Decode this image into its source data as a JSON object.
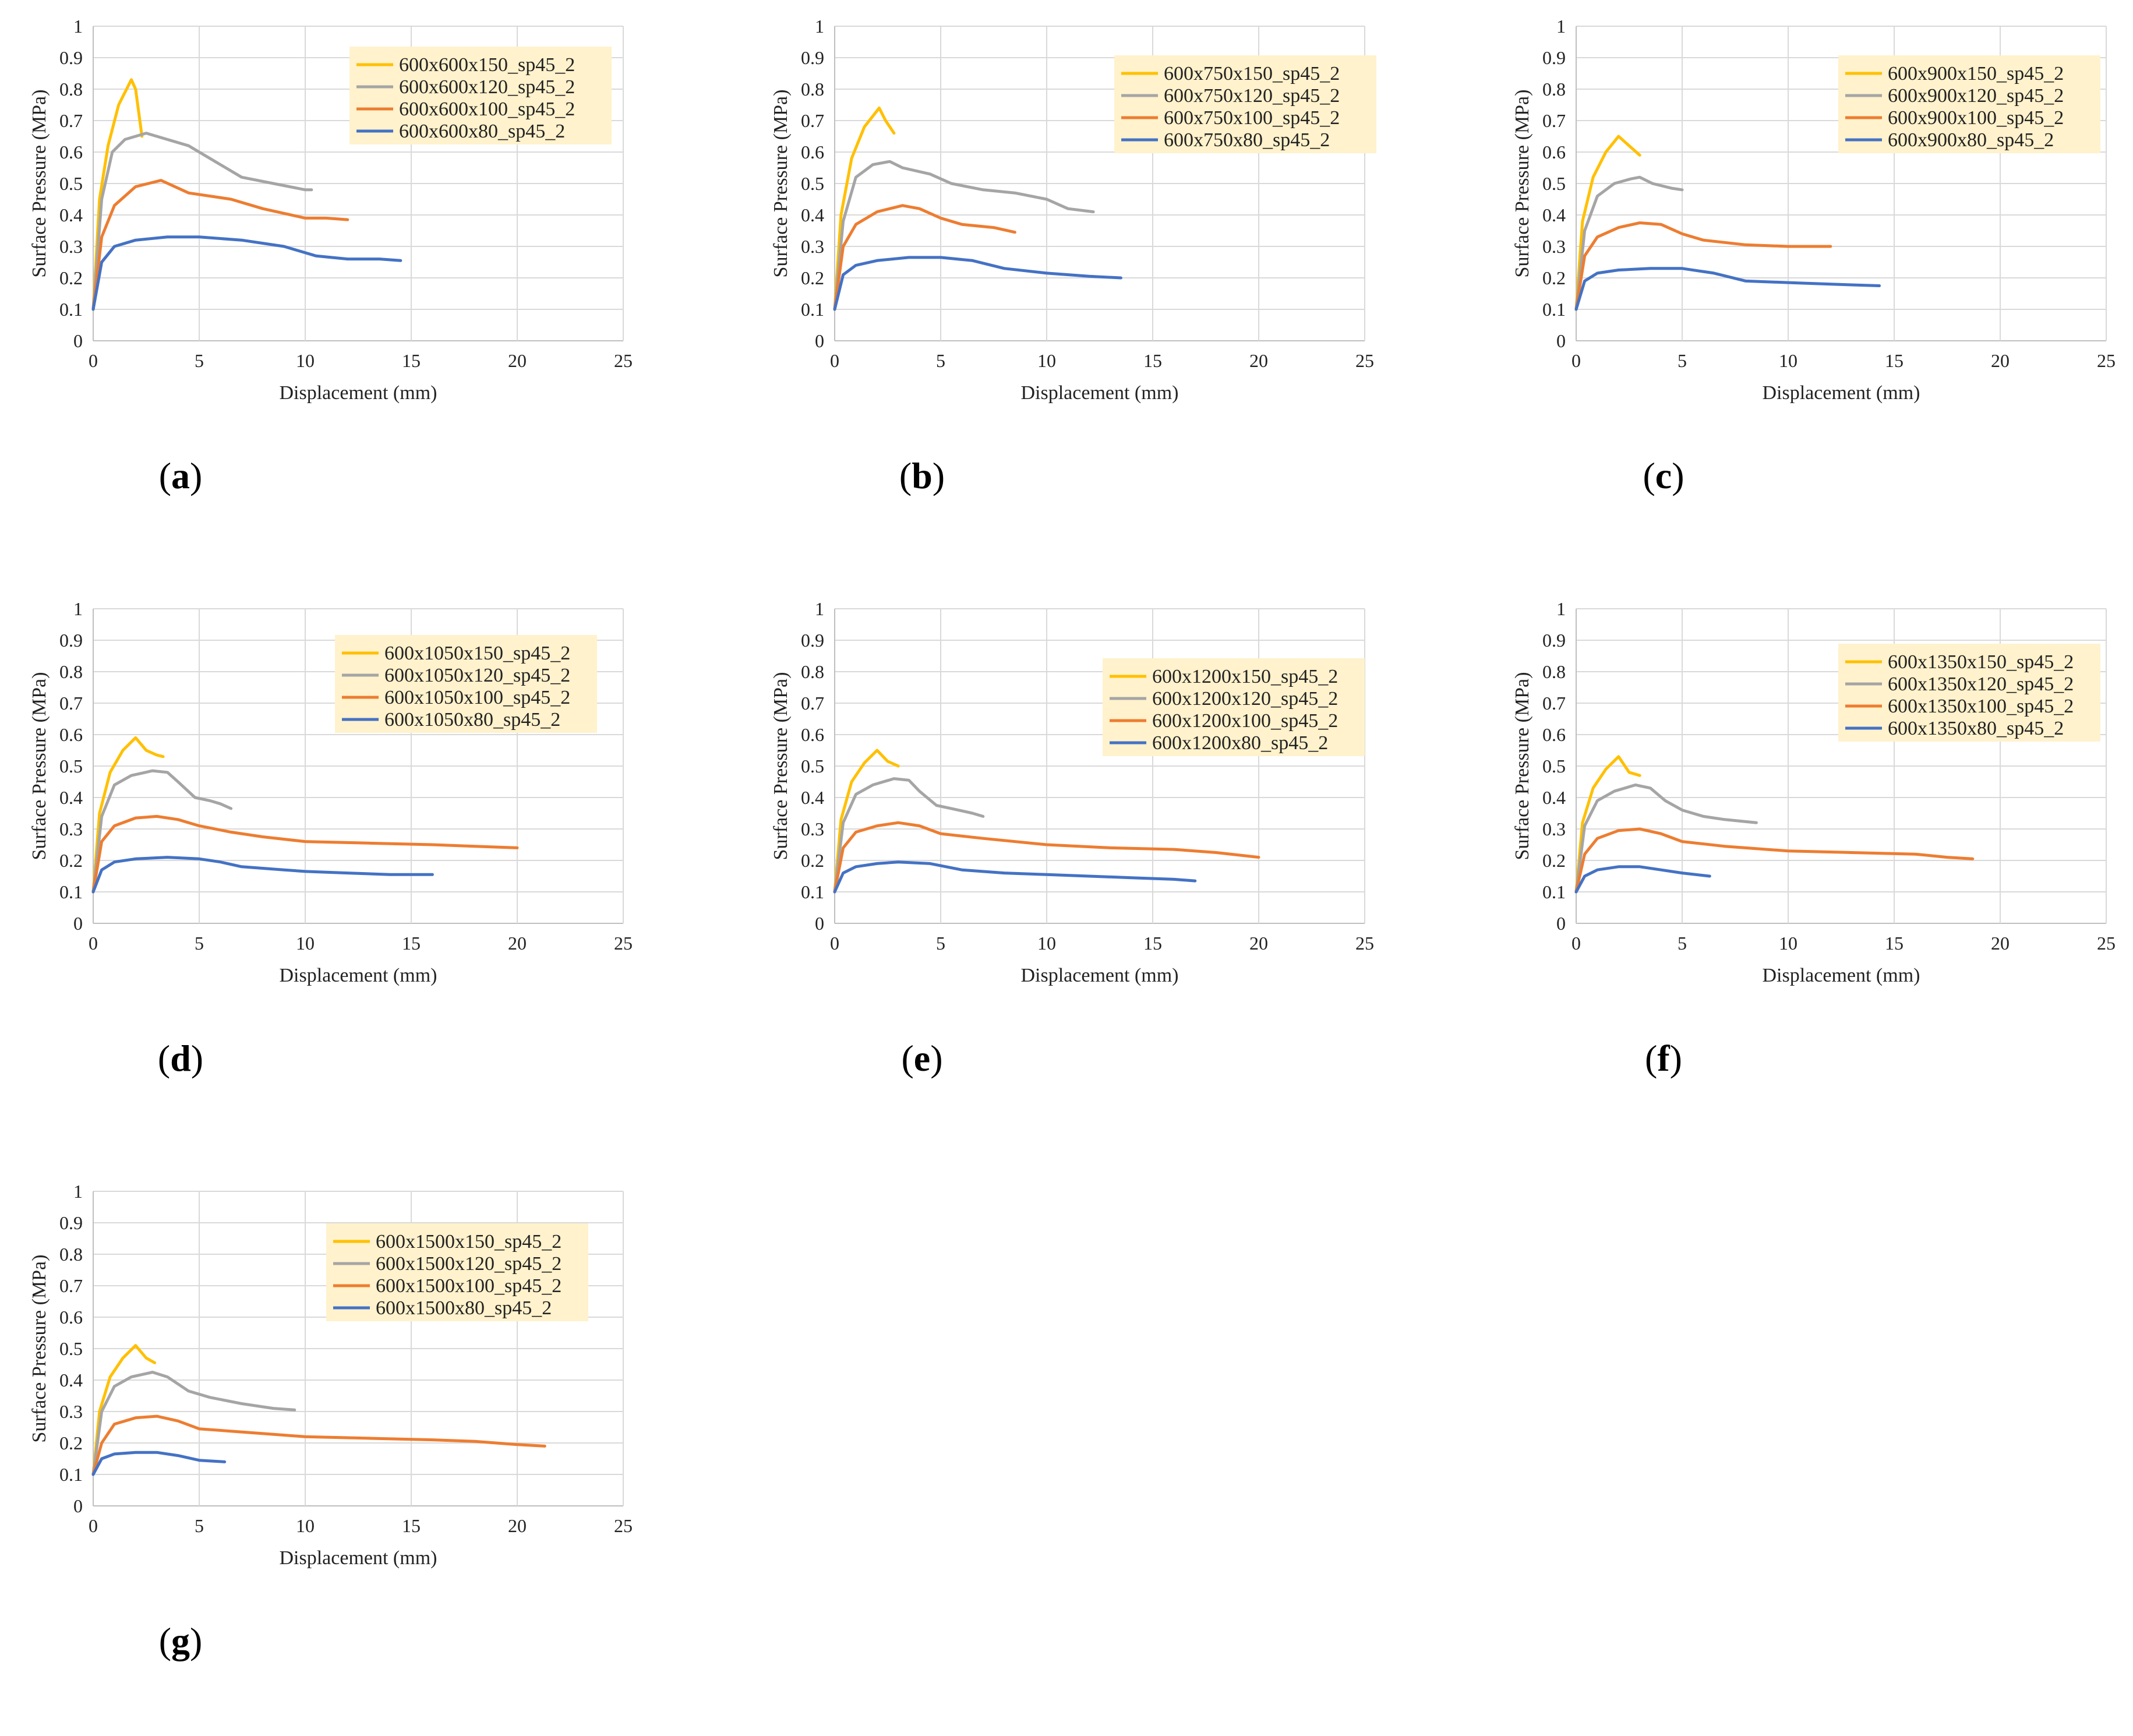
{
  "colors": {
    "series": [
      "#FFC000",
      "#A5A5A5",
      "#ED7D31",
      "#4472C4"
    ],
    "legend_bg": "#FFF2CC",
    "grid": "#D9D9D9"
  },
  "chart_data": [
    {
      "type": "line",
      "panel_label": "a",
      "xlabel": "Displacement (mm)",
      "ylabel": "Surface Pressure (MPa)",
      "xlim": [
        0,
        25
      ],
      "ylim": [
        0,
        1
      ],
      "xticks": [
        "0",
        "5",
        "10",
        "15",
        "20",
        "25"
      ],
      "yticks": [
        "0",
        "0.1",
        "0.2",
        "0.3",
        "0.4",
        "0.5",
        "0.6",
        "0.7",
        "0.8",
        "0.9",
        "1"
      ],
      "series": [
        {
          "name": "600x600x150_sp45_2",
          "x": [
            0,
            0.3,
            0.7,
            1.2,
            1.8,
            2.0,
            2.3
          ],
          "y": [
            0.1,
            0.45,
            0.62,
            0.75,
            0.83,
            0.8,
            0.65
          ]
        },
        {
          "name": "600x600x120_sp45_2",
          "x": [
            0,
            0.4,
            0.9,
            1.5,
            2.5,
            3.0,
            4.5,
            5.5,
            7,
            8.5,
            10,
            10.3
          ],
          "y": [
            0.1,
            0.45,
            0.6,
            0.64,
            0.66,
            0.65,
            0.62,
            0.58,
            0.52,
            0.5,
            0.48,
            0.48
          ]
        },
        {
          "name": "600x600x100_sp45_2",
          "x": [
            0,
            0.4,
            1.0,
            2.0,
            3.2,
            4.5,
            6.5,
            8,
            10,
            11,
            12
          ],
          "y": [
            0.1,
            0.33,
            0.43,
            0.49,
            0.51,
            0.47,
            0.45,
            0.42,
            0.39,
            0.39,
            0.385
          ]
        },
        {
          "name": "600x600x80_sp45_2",
          "x": [
            0,
            0.4,
            1.0,
            2.0,
            3.5,
            5,
            7,
            9,
            10.5,
            12,
            13.5,
            14.5
          ],
          "y": [
            0.1,
            0.25,
            0.3,
            0.32,
            0.33,
            0.33,
            0.32,
            0.3,
            0.27,
            0.26,
            0.26,
            0.255
          ]
        }
      ]
    },
    {
      "type": "line",
      "panel_label": "b",
      "xlabel": "Displacement (mm)",
      "ylabel": "Surface Pressure (MPa)",
      "xlim": [
        0,
        25
      ],
      "ylim": [
        0,
        1
      ],
      "xticks": [
        "0",
        "5",
        "10",
        "15",
        "20",
        "25"
      ],
      "yticks": [
        "0",
        "0.1",
        "0.2",
        "0.3",
        "0.4",
        "0.5",
        "0.6",
        "0.7",
        "0.8",
        "0.9",
        "1"
      ],
      "series": [
        {
          "name": "600x750x150_sp45_2",
          "x": [
            0,
            0.3,
            0.8,
            1.4,
            2.1,
            2.4,
            2.8
          ],
          "y": [
            0.1,
            0.4,
            0.58,
            0.68,
            0.74,
            0.7,
            0.66
          ]
        },
        {
          "name": "600x750x120_sp45_2",
          "x": [
            0,
            0.4,
            1.0,
            1.8,
            2.6,
            3.2,
            4.5,
            5.5,
            7,
            8.5,
            10,
            11,
            12.2
          ],
          "y": [
            0.1,
            0.38,
            0.52,
            0.56,
            0.57,
            0.55,
            0.53,
            0.5,
            0.48,
            0.47,
            0.45,
            0.42,
            0.41
          ]
        },
        {
          "name": "600x750x100_sp45_2",
          "x": [
            0,
            0.4,
            1.0,
            2.0,
            3.2,
            4.0,
            5.0,
            6.0,
            7.5,
            8.5
          ],
          "y": [
            0.1,
            0.3,
            0.37,
            0.41,
            0.43,
            0.42,
            0.39,
            0.37,
            0.36,
            0.345
          ]
        },
        {
          "name": "600x750x80_sp45_2",
          "x": [
            0,
            0.4,
            1.0,
            2.0,
            3.5,
            5,
            6.5,
            8,
            10,
            12,
            13.5
          ],
          "y": [
            0.1,
            0.21,
            0.24,
            0.255,
            0.265,
            0.265,
            0.255,
            0.23,
            0.215,
            0.205,
            0.2
          ]
        }
      ]
    },
    {
      "type": "line",
      "panel_label": "c",
      "xlabel": "Displacement (mm)",
      "ylabel": "Surface Pressure (MPa)",
      "xlim": [
        0,
        25
      ],
      "ylim": [
        0,
        1
      ],
      "xticks": [
        "0",
        "5",
        "10",
        "15",
        "20",
        "25"
      ],
      "yticks": [
        "0",
        "0.1",
        "0.2",
        "0.3",
        "0.4",
        "0.5",
        "0.6",
        "0.7",
        "0.8",
        "0.9",
        "1"
      ],
      "series": [
        {
          "name": "600x900x150_sp45_2",
          "x": [
            0,
            0.3,
            0.8,
            1.4,
            2.0,
            2.5,
            3.0
          ],
          "y": [
            0.1,
            0.38,
            0.52,
            0.6,
            0.65,
            0.62,
            0.59
          ]
        },
        {
          "name": "600x900x120_sp45_2",
          "x": [
            0,
            0.4,
            1.0,
            1.8,
            2.6,
            3.0,
            3.6,
            4.5,
            5.0
          ],
          "y": [
            0.1,
            0.35,
            0.46,
            0.5,
            0.515,
            0.52,
            0.5,
            0.485,
            0.48
          ]
        },
        {
          "name": "600x900x100_sp45_2",
          "x": [
            0,
            0.4,
            1.0,
            2.0,
            3.0,
            4.0,
            5.0,
            6.0,
            8.0,
            10,
            12
          ],
          "y": [
            0.1,
            0.27,
            0.33,
            0.36,
            0.375,
            0.37,
            0.34,
            0.32,
            0.305,
            0.3,
            0.3
          ]
        },
        {
          "name": "600x900x80_sp45_2",
          "x": [
            0,
            0.4,
            1.0,
            2.0,
            3.5,
            5,
            6.5,
            8,
            10,
            12,
            14.3
          ],
          "y": [
            0.1,
            0.19,
            0.215,
            0.225,
            0.23,
            0.23,
            0.215,
            0.19,
            0.185,
            0.18,
            0.175
          ]
        }
      ]
    },
    {
      "type": "line",
      "panel_label": "d",
      "xlabel": "Displacement (mm)",
      "ylabel": "Surface Pressure (MPa)",
      "xlim": [
        0,
        25
      ],
      "ylim": [
        0,
        1
      ],
      "xticks": [
        "0",
        "5",
        "10",
        "15",
        "20",
        "25"
      ],
      "yticks": [
        "0",
        "0.1",
        "0.2",
        "0.3",
        "0.4",
        "0.5",
        "0.6",
        "0.7",
        "0.8",
        "0.9",
        "1"
      ],
      "series": [
        {
          "name": "600x1050x150_sp45_2",
          "x": [
            0,
            0.3,
            0.8,
            1.4,
            2.0,
            2.5,
            3.0,
            3.3
          ],
          "y": [
            0.1,
            0.35,
            0.48,
            0.55,
            0.59,
            0.55,
            0.535,
            0.53
          ]
        },
        {
          "name": "600x1050x120_sp45_2",
          "x": [
            0,
            0.4,
            1.0,
            1.8,
            2.8,
            3.5,
            4.0,
            4.8,
            5.5,
            6.0,
            6.5
          ],
          "y": [
            0.1,
            0.34,
            0.44,
            0.47,
            0.485,
            0.48,
            0.45,
            0.4,
            0.39,
            0.38,
            0.365
          ]
        },
        {
          "name": "600x1050x100_sp45_2",
          "x": [
            0,
            0.4,
            1.0,
            2.0,
            3.0,
            4.0,
            5.0,
            6.5,
            8,
            10,
            13,
            16,
            18,
            20
          ],
          "y": [
            0.1,
            0.26,
            0.31,
            0.335,
            0.34,
            0.33,
            0.31,
            0.29,
            0.275,
            0.26,
            0.255,
            0.25,
            0.245,
            0.24
          ]
        },
        {
          "name": "600x1050x80_sp45_2",
          "x": [
            0,
            0.4,
            1.0,
            2.0,
            3.5,
            5,
            6,
            7,
            9,
            10,
            12,
            14,
            16
          ],
          "y": [
            0.1,
            0.17,
            0.195,
            0.205,
            0.21,
            0.205,
            0.195,
            0.18,
            0.17,
            0.165,
            0.16,
            0.155,
            0.155
          ]
        }
      ]
    },
    {
      "type": "line",
      "panel_label": "e",
      "xlabel": "Displacement (mm)",
      "ylabel": "Surface Pressure (MPa)",
      "xlim": [
        0,
        25
      ],
      "ylim": [
        0,
        1
      ],
      "xticks": [
        "0",
        "5",
        "10",
        "15",
        "20",
        "25"
      ],
      "yticks": [
        "0",
        "0.1",
        "0.2",
        "0.3",
        "0.4",
        "0.5",
        "0.6",
        "0.7",
        "0.8",
        "0.9",
        "1"
      ],
      "series": [
        {
          "name": "600x1200x150_sp45_2",
          "x": [
            0,
            0.3,
            0.8,
            1.4,
            2.0,
            2.5,
            3.0
          ],
          "y": [
            0.1,
            0.33,
            0.45,
            0.51,
            0.55,
            0.515,
            0.5
          ]
        },
        {
          "name": "600x1200x120_sp45_2",
          "x": [
            0,
            0.4,
            1.0,
            1.8,
            2.8,
            3.5,
            4.0,
            4.8,
            5.5,
            6.5,
            7.0
          ],
          "y": [
            0.1,
            0.32,
            0.41,
            0.44,
            0.46,
            0.455,
            0.42,
            0.375,
            0.365,
            0.35,
            0.34
          ]
        },
        {
          "name": "600x1200x100_sp45_2",
          "x": [
            0,
            0.4,
            1.0,
            2.0,
            3.0,
            4.0,
            5.0,
            7,
            10,
            13,
            16,
            18,
            20
          ],
          "y": [
            0.1,
            0.24,
            0.29,
            0.31,
            0.32,
            0.31,
            0.285,
            0.27,
            0.25,
            0.24,
            0.235,
            0.225,
            0.21
          ]
        },
        {
          "name": "600x1200x80_sp45_2",
          "x": [
            0,
            0.4,
            1.0,
            2.0,
            3.0,
            4.5,
            6,
            8,
            10,
            12,
            14,
            16,
            17
          ],
          "y": [
            0.1,
            0.16,
            0.18,
            0.19,
            0.195,
            0.19,
            0.17,
            0.16,
            0.155,
            0.15,
            0.145,
            0.14,
            0.135
          ]
        }
      ]
    },
    {
      "type": "line",
      "panel_label": "f",
      "xlabel": "Displacement (mm)",
      "ylabel": "Surface Pressure (MPa)",
      "xlim": [
        0,
        25
      ],
      "ylim": [
        0,
        1
      ],
      "xticks": [
        "0",
        "5",
        "10",
        "15",
        "20",
        "25"
      ],
      "yticks": [
        "0",
        "0.1",
        "0.2",
        "0.3",
        "0.4",
        "0.5",
        "0.6",
        "0.7",
        "0.8",
        "0.9",
        "1"
      ],
      "series": [
        {
          "name": "600x1350x150_sp45_2",
          "x": [
            0,
            0.3,
            0.8,
            1.4,
            2.0,
            2.5,
            3.0
          ],
          "y": [
            0.1,
            0.32,
            0.43,
            0.49,
            0.53,
            0.48,
            0.47
          ]
        },
        {
          "name": "600x1350x120_sp45_2",
          "x": [
            0,
            0.4,
            1.0,
            1.8,
            2.8,
            3.5,
            4.2,
            5.0,
            6.0,
            7.0,
            8.5
          ],
          "y": [
            0.1,
            0.31,
            0.39,
            0.42,
            0.44,
            0.43,
            0.39,
            0.36,
            0.34,
            0.33,
            0.32
          ]
        },
        {
          "name": "600x1350x100_sp45_2",
          "x": [
            0,
            0.4,
            1.0,
            2.0,
            3.0,
            4.0,
            5.0,
            7,
            10,
            13,
            16,
            17.5,
            18.7
          ],
          "y": [
            0.1,
            0.22,
            0.27,
            0.295,
            0.3,
            0.285,
            0.26,
            0.245,
            0.23,
            0.225,
            0.22,
            0.21,
            0.205
          ]
        },
        {
          "name": "600x1350x80_sp45_2",
          "x": [
            0,
            0.4,
            1.0,
            2.0,
            3.0,
            4.0,
            5.0,
            6.3
          ],
          "y": [
            0.1,
            0.15,
            0.17,
            0.18,
            0.18,
            0.17,
            0.16,
            0.15
          ]
        }
      ]
    },
    {
      "type": "line",
      "panel_label": "g",
      "xlabel": "Displacement (mm)",
      "ylabel": "Surface Pressure (MPa)",
      "xlim": [
        0,
        25
      ],
      "ylim": [
        0,
        1
      ],
      "xticks": [
        "0",
        "5",
        "10",
        "15",
        "20",
        "25"
      ],
      "yticks": [
        "0",
        "0.1",
        "0.2",
        "0.3",
        "0.4",
        "0.5",
        "0.6",
        "0.7",
        "0.8",
        "0.9",
        "1"
      ],
      "series": [
        {
          "name": "600x1500x150_sp45_2",
          "x": [
            0,
            0.3,
            0.8,
            1.4,
            2.0,
            2.5,
            2.9
          ],
          "y": [
            0.1,
            0.3,
            0.41,
            0.47,
            0.51,
            0.47,
            0.455
          ]
        },
        {
          "name": "600x1500x120_sp45_2",
          "x": [
            0,
            0.4,
            1.0,
            1.8,
            2.8,
            3.5,
            4.5,
            5.5,
            7.0,
            8.5,
            9.5
          ],
          "y": [
            0.1,
            0.3,
            0.38,
            0.41,
            0.425,
            0.41,
            0.365,
            0.345,
            0.325,
            0.31,
            0.305
          ]
        },
        {
          "name": "600x1500x100_sp45_2",
          "x": [
            0,
            0.4,
            1.0,
            2.0,
            3.0,
            4.0,
            5.0,
            7,
            10,
            13,
            16,
            18,
            20,
            21.3
          ],
          "y": [
            0.1,
            0.2,
            0.26,
            0.28,
            0.285,
            0.27,
            0.245,
            0.235,
            0.22,
            0.215,
            0.21,
            0.205,
            0.195,
            0.19
          ]
        },
        {
          "name": "600x1500x80_sp45_2",
          "x": [
            0,
            0.4,
            1.0,
            2.0,
            3.0,
            4.0,
            5.0,
            6.2
          ],
          "y": [
            0.1,
            0.15,
            0.165,
            0.17,
            0.17,
            0.16,
            0.145,
            0.14
          ]
        }
      ]
    }
  ]
}
